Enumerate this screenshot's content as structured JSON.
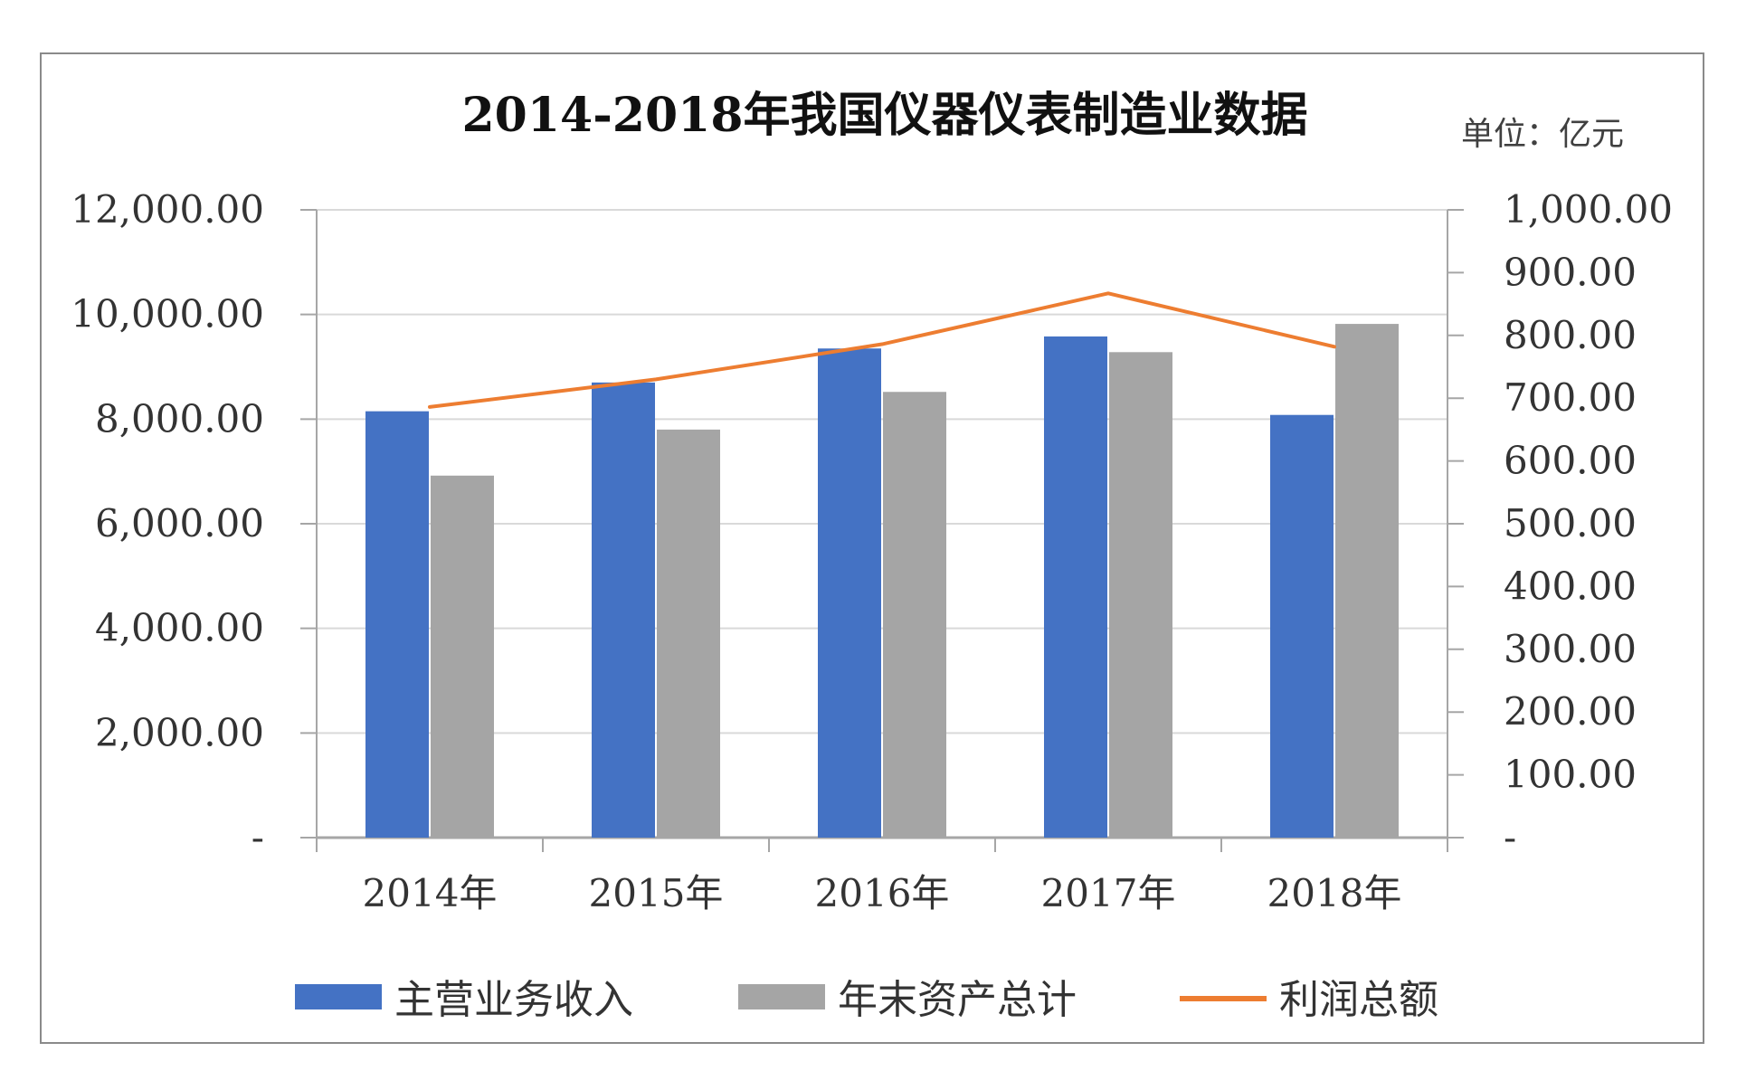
{
  "chart_data": {
    "type": "bar",
    "title": "2014-2018年我国仪器仪表制造业数据",
    "unit_label": "单位：亿元",
    "categories": [
      "2014年",
      "2015年",
      "2016年",
      "2017年",
      "2018年"
    ],
    "series": [
      {
        "name": "主营业务收入",
        "type": "bar",
        "axis": "left",
        "color": "#4472C4",
        "values": [
          8150,
          8700,
          9350,
          9580,
          8080
        ]
      },
      {
        "name": "年末资产总计",
        "type": "bar",
        "axis": "left",
        "color": "#A5A5A5",
        "values": [
          6920,
          7800,
          8520,
          9280,
          9820
        ]
      },
      {
        "name": "利润总额",
        "type": "line",
        "axis": "right",
        "color": "#ED7D31",
        "values": [
          686,
          730,
          786,
          867,
          782
        ]
      }
    ],
    "y_left": {
      "ylim": [
        0,
        12000
      ],
      "ticks": [
        0,
        2000,
        4000,
        6000,
        8000,
        10000,
        12000
      ],
      "tick_labels": [
        "-",
        "2,000.00",
        "4,000.00",
        "6,000.00",
        "8,000.00",
        "10,000.00",
        "12,000.00"
      ]
    },
    "y_right": {
      "ylim": [
        0,
        1000
      ],
      "ticks": [
        0,
        100,
        200,
        300,
        400,
        500,
        600,
        700,
        800,
        900,
        1000
      ],
      "tick_labels": [
        "-",
        "100.00",
        "200.00",
        "300.00",
        "400.00",
        "500.00",
        "600.00",
        "700.00",
        "800.00",
        "900.00",
        "1,000.00"
      ]
    },
    "grid": true,
    "legend_position": "bottom",
    "colors": {
      "grid": "#D9D9D9",
      "axis": "#A6A6A6"
    }
  }
}
